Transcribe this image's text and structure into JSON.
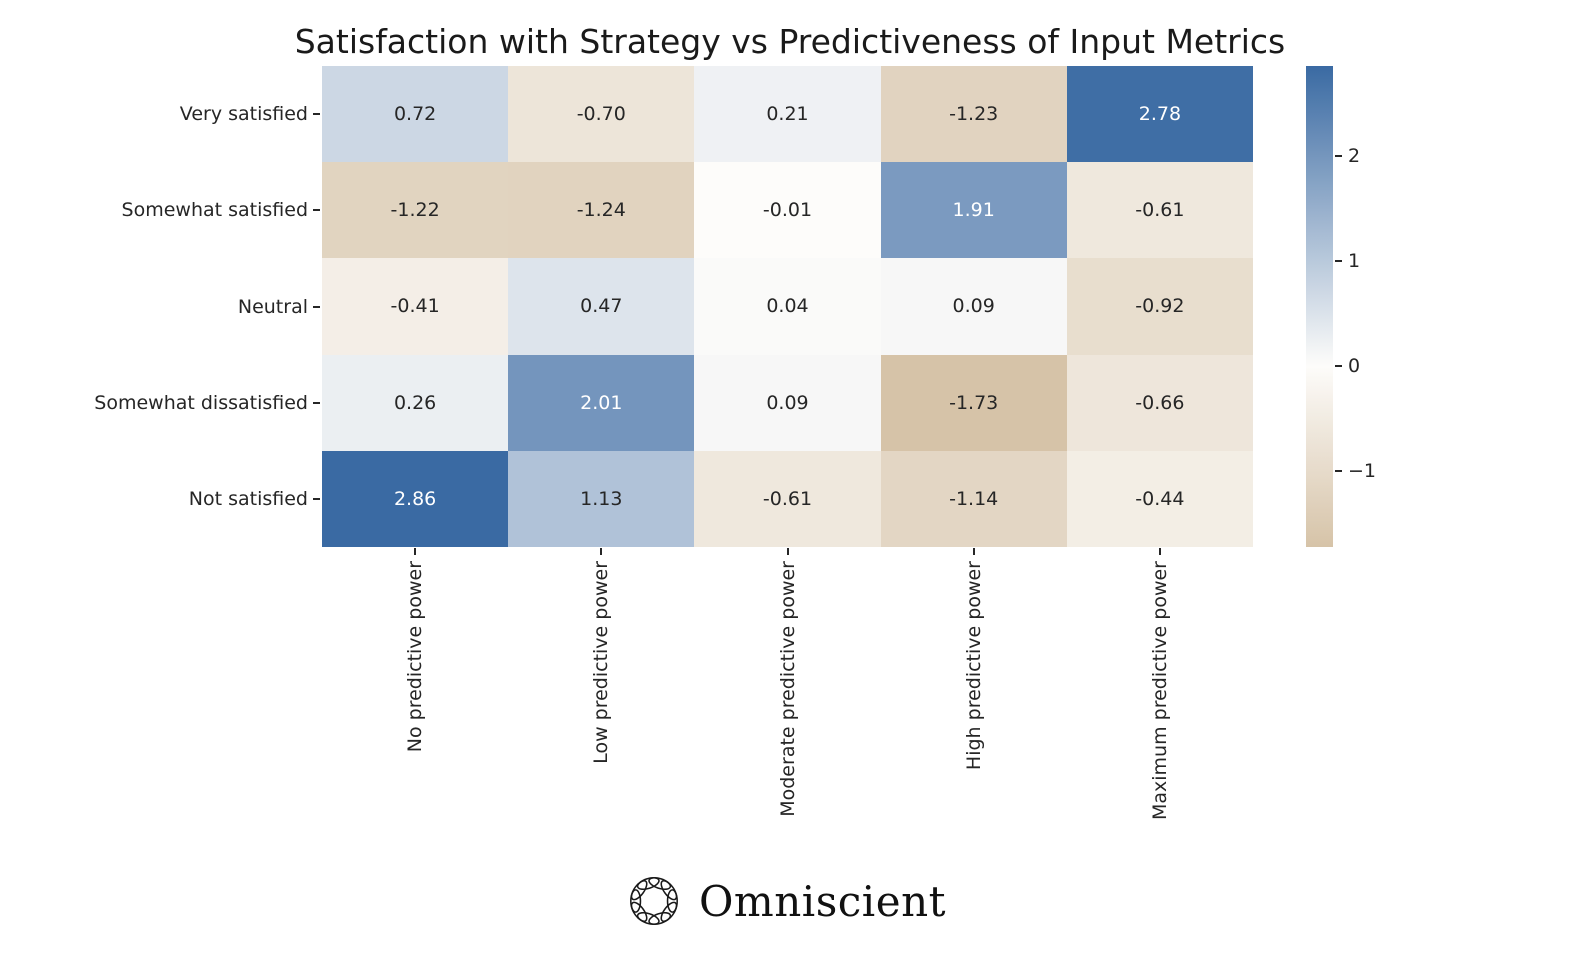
{
  "title": "Satisfaction with Strategy vs Predictiveness of Input Metrics",
  "chart_data": {
    "type": "heatmap",
    "title": "Satisfaction with Strategy vs Predictiveness of Input Metrics",
    "rows": [
      "Very satisfied",
      "Somewhat satisfied",
      "Neutral",
      "Somewhat dissatisfied",
      "Not satisfied"
    ],
    "columns": [
      "No predictive power",
      "Low predictive power",
      "Moderate predictive power",
      "High predictive power",
      "Maximum predictive power"
    ],
    "values": [
      [
        0.72,
        -0.7,
        0.21,
        -1.23,
        2.78
      ],
      [
        -1.22,
        -1.24,
        -0.01,
        1.91,
        -0.61
      ],
      [
        -0.41,
        0.47,
        0.04,
        0.09,
        -0.92
      ],
      [
        0.26,
        2.01,
        0.09,
        -1.73,
        -0.66
      ],
      [
        2.86,
        1.13,
        -0.61,
        -1.14,
        -0.44
      ]
    ],
    "value_decimals": 2,
    "vmin": -1.73,
    "vmax": 2.86,
    "center": 0,
    "colorbar_ticks": [
      2,
      1,
      0,
      -1
    ],
    "colorbar_position": "right",
    "grid": false,
    "colors": {
      "positive_max": "#3a6aa3",
      "center": "#fdfcfa",
      "negative_min": "#d6c3a8",
      "annotation_dark": "#262626",
      "annotation_light": "#ffffff"
    }
  },
  "footer": {
    "brand": "Omniscient",
    "icon": "knot-ring-icon"
  }
}
